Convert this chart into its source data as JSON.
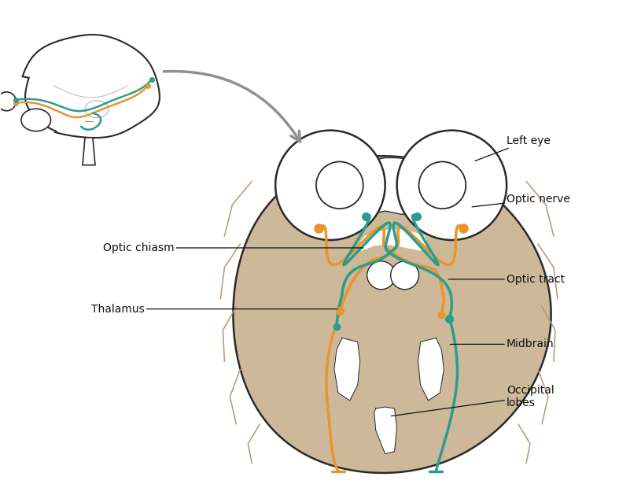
{
  "bg_color": "#ffffff",
  "brain_fill": "#cdb99a",
  "brain_outline": "#2a2a2a",
  "orange_color": "#e8952a",
  "teal_color": "#2a9d8f",
  "text_color": "#111111",
  "arrow_gray": "#909090",
  "labels": {
    "left_eye": "Left eye",
    "optic_nerve": "Optic nerve",
    "optic_chiasm": "Optic chiasm",
    "optic_tract": "Optic tract",
    "thalamus": "Thalamus",
    "midbrain": "Midbrain",
    "occipital_lobes": "Occipital\nlobes"
  }
}
